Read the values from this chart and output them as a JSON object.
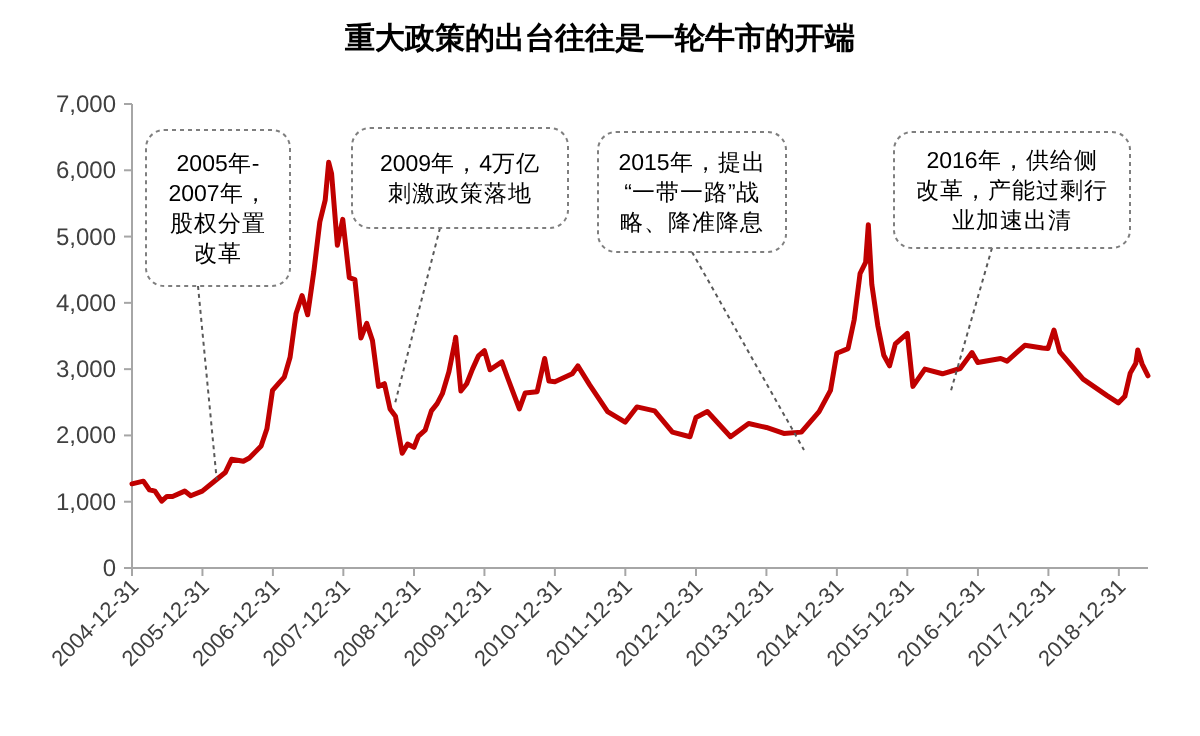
{
  "chart_data": {
    "type": "line",
    "title": "重大政策的出台往往是一轮牛市的开端",
    "x": [
      "2004-12-31",
      "2005-02-28",
      "2005-03-31",
      "2005-04-29",
      "2005-06-03",
      "2005-06-30",
      "2005-07-29",
      "2005-09-30",
      "2005-10-31",
      "2005-12-30",
      "2006-02-28",
      "2006-04-28",
      "2006-05-31",
      "2006-07-31",
      "2006-08-31",
      "2006-10-31",
      "2006-11-30",
      "2006-12-29",
      "2007-01-31",
      "2007-02-28",
      "2007-03-30",
      "2007-04-30",
      "2007-05-31",
      "2007-06-29",
      "2007-07-31",
      "2007-08-31",
      "2007-09-28",
      "2007-10-16",
      "2007-10-31",
      "2007-11-30",
      "2007-12-28",
      "2008-01-31",
      "2008-02-29",
      "2008-03-31",
      "2008-04-30",
      "2008-05-30",
      "2008-06-30",
      "2008-07-31",
      "2008-08-29",
      "2008-09-26",
      "2008-10-31",
      "2008-11-28",
      "2008-12-31",
      "2009-01-23",
      "2009-02-27",
      "2009-03-31",
      "2009-04-30",
      "2009-05-27",
      "2009-06-30",
      "2009-07-31",
      "2009-08-04",
      "2009-08-31",
      "2009-09-30",
      "2009-10-30",
      "2009-11-30",
      "2009-12-31",
      "2010-01-29",
      "2010-03-31",
      "2010-04-30",
      "2010-06-30",
      "2010-07-30",
      "2010-09-30",
      "2010-11-08",
      "2010-11-30",
      "2010-12-31",
      "2011-03-31",
      "2011-04-29",
      "2011-06-30",
      "2011-09-30",
      "2011-12-30",
      "2012-02-29",
      "2012-05-31",
      "2012-08-31",
      "2012-11-30",
      "2012-12-31",
      "2013-02-28",
      "2013-06-28",
      "2013-09-30",
      "2013-12-31",
      "2014-03-31",
      "2014-06-30",
      "2014-09-30",
      "2014-11-28",
      "2014-12-31",
      "2015-02-27",
      "2015-03-31",
      "2015-04-30",
      "2015-05-29",
      "2015-06-12",
      "2015-06-30",
      "2015-07-31",
      "2015-08-31",
      "2015-09-30",
      "2015-10-30",
      "2015-12-31",
      "2016-01-29",
      "2016-03-31",
      "2016-06-30",
      "2016-09-30",
      "2016-11-30",
      "2016-12-30",
      "2017-04-28",
      "2017-05-31",
      "2017-08-31",
      "2017-11-30",
      "2017-12-29",
      "2018-01-29",
      "2018-02-28",
      "2018-06-29",
      "2018-10-31",
      "2018-12-28",
      "2019-01-31",
      "2019-02-28",
      "2019-03-29",
      "2019-04-08",
      "2019-04-30",
      "2019-05-31"
    ],
    "series": [
      {
        "color": "#c00000",
        "values": [
          1270,
          1310,
          1180,
          1160,
          1010,
          1080,
          1080,
          1160,
          1090,
          1160,
          1300,
          1440,
          1640,
          1610,
          1660,
          1840,
          2100,
          2680,
          2790,
          2880,
          3180,
          3840,
          4110,
          3820,
          4470,
          5220,
          5550,
          6120,
          5950,
          4870,
          5260,
          4380,
          4350,
          3470,
          3690,
          3430,
          2740,
          2780,
          2400,
          2290,
          1730,
          1870,
          1820,
          1990,
          2080,
          2370,
          2480,
          2630,
          2960,
          3410,
          3480,
          2670,
          2780,
          3000,
          3200,
          3280,
          2990,
          3110,
          2870,
          2400,
          2640,
          2660,
          3160,
          2820,
          2810,
          2930,
          3050,
          2760,
          2360,
          2200,
          2430,
          2370,
          2050,
          1980,
          2270,
          2360,
          1980,
          2180,
          2120,
          2030,
          2050,
          2360,
          2680,
          3240,
          3310,
          3750,
          4440,
          4610,
          5180,
          4280,
          3660,
          3210,
          3050,
          3380,
          3540,
          2740,
          3000,
          2930,
          3010,
          3250,
          3100,
          3160,
          3120,
          3360,
          3320,
          3310,
          3590,
          3260,
          2850,
          2600,
          2490,
          2590,
          2940,
          3090,
          3290,
          3080,
          2900
        ]
      }
    ],
    "xlim": [
      "2004-12-31",
      "2019-05-31"
    ],
    "xticks": [
      "2004-12-31",
      "2005-12-31",
      "2006-12-31",
      "2007-12-31",
      "2008-12-31",
      "2009-12-31",
      "2010-12-31",
      "2011-12-31",
      "2012-12-31",
      "2013-12-31",
      "2014-12-31",
      "2015-12-31",
      "2016-12-31",
      "2017-12-31",
      "2018-12-31"
    ],
    "ylim": [
      0,
      7000
    ],
    "yticks": [
      {
        "value": 0,
        "label": "0"
      },
      {
        "value": 1000,
        "label": "1,000"
      },
      {
        "value": 2000,
        "label": "2,000"
      },
      {
        "value": 3000,
        "label": "3,000"
      },
      {
        "value": 4000,
        "label": "4,000"
      },
      {
        "value": 5000,
        "label": "5,000"
      },
      {
        "value": 6000,
        "label": "6,000"
      },
      {
        "value": 7000,
        "label": "7,000"
      }
    ],
    "grid": false,
    "annotations": [
      {
        "text": "2005年-2007年，股权分置改革",
        "x": "2006-03-15",
        "y": 1330
      },
      {
        "text": "2009年，4万亿刺激政策落地",
        "x": "2008-09-20",
        "y": 2440
      },
      "2015年，提出“一带一路”战略、降准降息",
      "2016年，供给侧改革，产能过剩行业加速出清"
    ]
  }
}
